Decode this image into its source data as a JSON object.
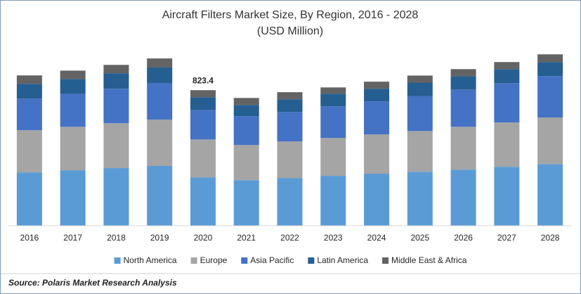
{
  "chart_data": {
    "type": "stacked_bar",
    "title": "Aircraft Filters Market Size, By Region, 2016 - 2028",
    "subtitle": "(USD Million)",
    "source": "Source: Polaris Market Research Analysis",
    "categories": [
      "2016",
      "2017",
      "2018",
      "2019",
      "2020",
      "2021",
      "2022",
      "2023",
      "2024",
      "2025",
      "2026",
      "2027",
      "2028"
    ],
    "series": [
      {
        "name": "North America",
        "color": "#5b9bd5",
        "values": [
          324,
          337,
          350,
          363,
          294,
          277,
          290,
          303,
          316,
          328,
          341,
          358,
          375
        ]
      },
      {
        "name": "Europe",
        "color": "#a5a5a5",
        "values": [
          256,
          264,
          273,
          282,
          230,
          213,
          222,
          230,
          239,
          247,
          260,
          269,
          282
        ]
      },
      {
        "name": "Asia Pacific",
        "color": "#4472c4",
        "values": [
          192,
          200,
          209,
          222,
          179,
          175,
          179,
          192,
          200,
          213,
          226,
          239,
          252
        ]
      },
      {
        "name": "Latin America",
        "color": "#255e91",
        "values": [
          90,
          90,
          94,
          94,
          77,
          68,
          77,
          77,
          77,
          81,
          81,
          85,
          85
        ]
      },
      {
        "name": "Middle East & Africa",
        "color": "#636363",
        "values": [
          51,
          51,
          51,
          55,
          43.4,
          43,
          43,
          38,
          43,
          43,
          43,
          43,
          47
        ]
      }
    ],
    "annotations": [
      {
        "category": "2020",
        "label": "823.4",
        "value": 823.4
      }
    ],
    "ylim": [
      0,
      1200
    ],
    "legend": "bottom"
  }
}
